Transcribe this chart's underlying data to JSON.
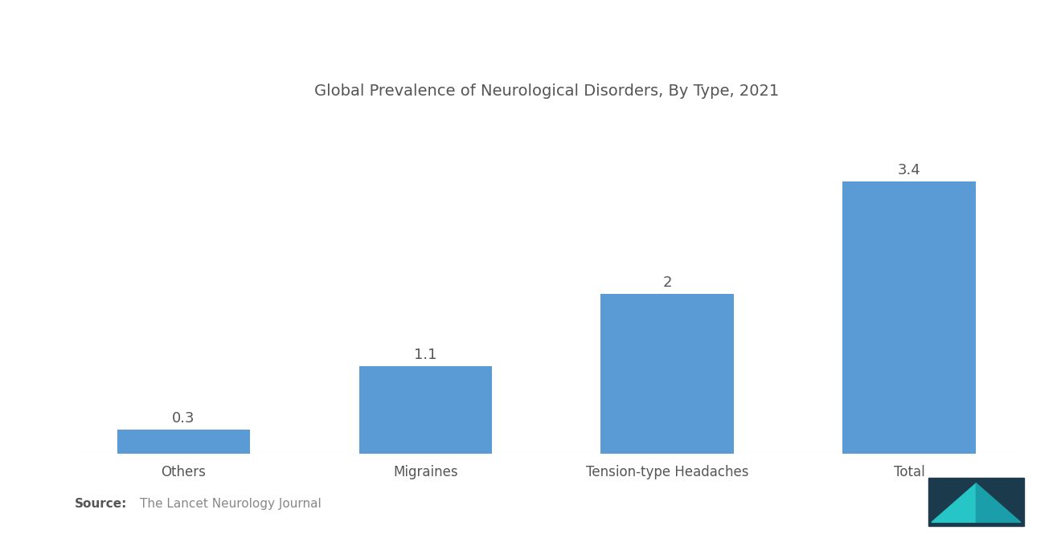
{
  "title": "Global Prevalence of Neurological Disorders, By Type, 2021",
  "categories": [
    "Others",
    "Migraines",
    "Tension-type Headaches",
    "Total"
  ],
  "values": [
    0.3,
    1.1,
    2.0,
    3.4
  ],
  "bar_color": "#5B9BD5",
  "bar_labels": [
    "0.3",
    "1.1",
    "2",
    "3.4"
  ],
  "title_fontsize": 14,
  "label_fontsize": 12,
  "value_fontsize": 13,
  "background_color": "#FFFFFF",
  "source_bold": "Source:",
  "source_text": "The Lancet Neurology Journal",
  "source_fontsize": 11,
  "ylim": [
    0,
    4.2
  ],
  "bar_width": 0.55
}
